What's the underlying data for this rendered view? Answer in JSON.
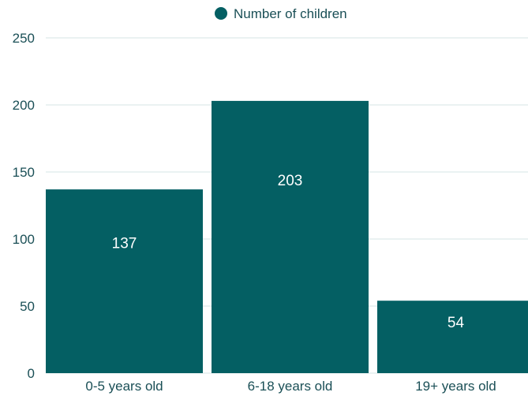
{
  "chart_data": {
    "type": "bar",
    "categories": [
      "0-5 years old",
      "6-18 years old",
      "19+ years old"
    ],
    "series": [
      {
        "name": "Number of children",
        "values": [
          137,
          203,
          54
        ]
      }
    ],
    "data_labels": [
      "137",
      "203",
      "54"
    ],
    "ylim": [
      0,
      250
    ],
    "yticks": [
      0,
      50,
      100,
      150,
      200,
      250
    ],
    "ytick_labels": [
      "0",
      "50",
      "100",
      "150",
      "200",
      "250"
    ],
    "grid": true,
    "legend_position": "top-center",
    "title": "",
    "xlabel": "",
    "ylabel": ""
  },
  "colors": {
    "bar": "#045f63",
    "grid": "#d6e4e4",
    "axis_text": "#1a4f56",
    "label_text": "#ffffff"
  }
}
